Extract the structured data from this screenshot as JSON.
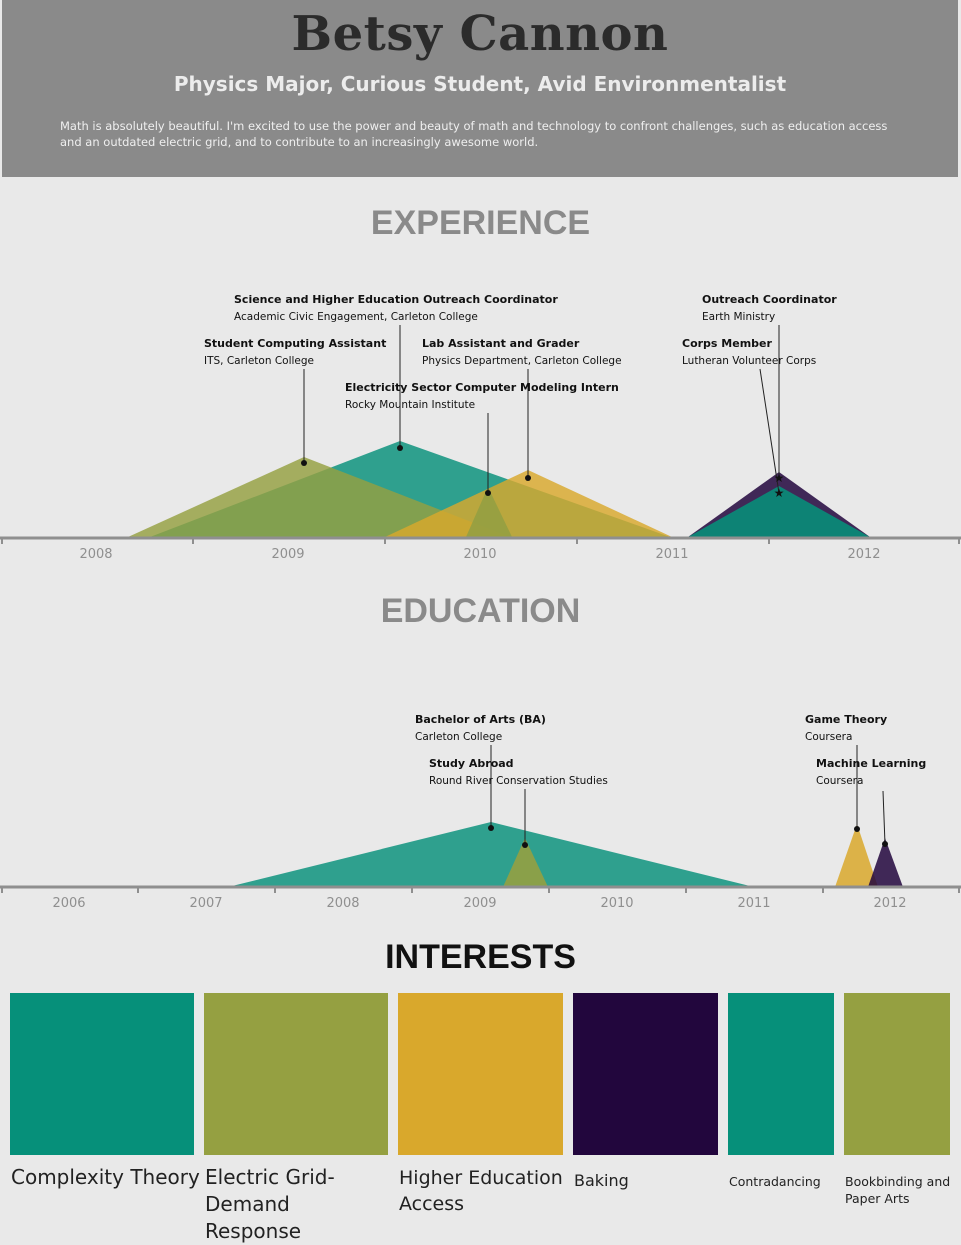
{
  "header": {
    "name": "Betsy Cannon",
    "tagline": "Physics Major, Curious Student, Avid Environmentalist",
    "bio": "Math is absolutely beautiful. I'm excited to use the power and beauty of math and technology to confront challenges, such as education access and an outdated electric grid, and to contribute to an increasingly awesome world."
  },
  "colors": {
    "teal": "#06907a",
    "olive": "#95a041",
    "gold": "#d9a82c",
    "purple": "#22063d",
    "header_bg": "#8a8a8a",
    "page_bg": "#e9e9e9",
    "axis": "#8f8f8f"
  },
  "experience": {
    "title": "EXPERIENCE",
    "years": [
      "2008",
      "2009",
      "2010",
      "2011",
      "2012"
    ],
    "entries": [
      {
        "title": "Science and Higher Education Outreach Coordinator",
        "org": "Academic Civic Engagement, Carleton College",
        "color": "#06907a"
      },
      {
        "title": "Student Computing Assistant",
        "org": "ITS, Carleton College",
        "color": "#95a041"
      },
      {
        "title": "Lab Assistant and Grader",
        "org": "Physics Department, Carleton College",
        "color": "#d9a82c"
      },
      {
        "title": "Electricity Sector Computer Modeling Intern",
        "org": "Rocky Mountain Institute",
        "color": "#95a041"
      },
      {
        "title": "Outreach Coordinator",
        "org": "Earth Ministry",
        "color": "#22063d"
      },
      {
        "title": "Corps Member",
        "org": "Lutheran Volunteer Corps",
        "color": "#06907a"
      }
    ]
  },
  "education": {
    "title": "EDUCATION",
    "years": [
      "2006",
      "2007",
      "2008",
      "2009",
      "2010",
      "2011",
      "2012"
    ],
    "entries": [
      {
        "title": "Bachelor of Arts (BA)",
        "org": "Carleton College",
        "color": "#06907a"
      },
      {
        "title": "Study Abroad",
        "org": "Round River Conservation Studies",
        "color": "#95a041"
      },
      {
        "title": "Game Theory",
        "org": "Coursera",
        "color": "#d9a82c"
      },
      {
        "title": "Machine Learning",
        "org": "Coursera",
        "color": "#22063d"
      }
    ]
  },
  "interests": {
    "title": "INTERESTS",
    "items": [
      {
        "label": "Complexity Theory",
        "color": "#06907a"
      },
      {
        "label": "Electric Grid- Demand Response",
        "color": "#95a041"
      },
      {
        "label": "Higher Education Access",
        "color": "#d9a82c"
      },
      {
        "label": "Baking",
        "color": "#22063d"
      },
      {
        "label": "Contradancing",
        "color": "#06907a"
      },
      {
        "label": "Bookbinding and Paper Arts",
        "color": "#95a041"
      }
    ]
  }
}
